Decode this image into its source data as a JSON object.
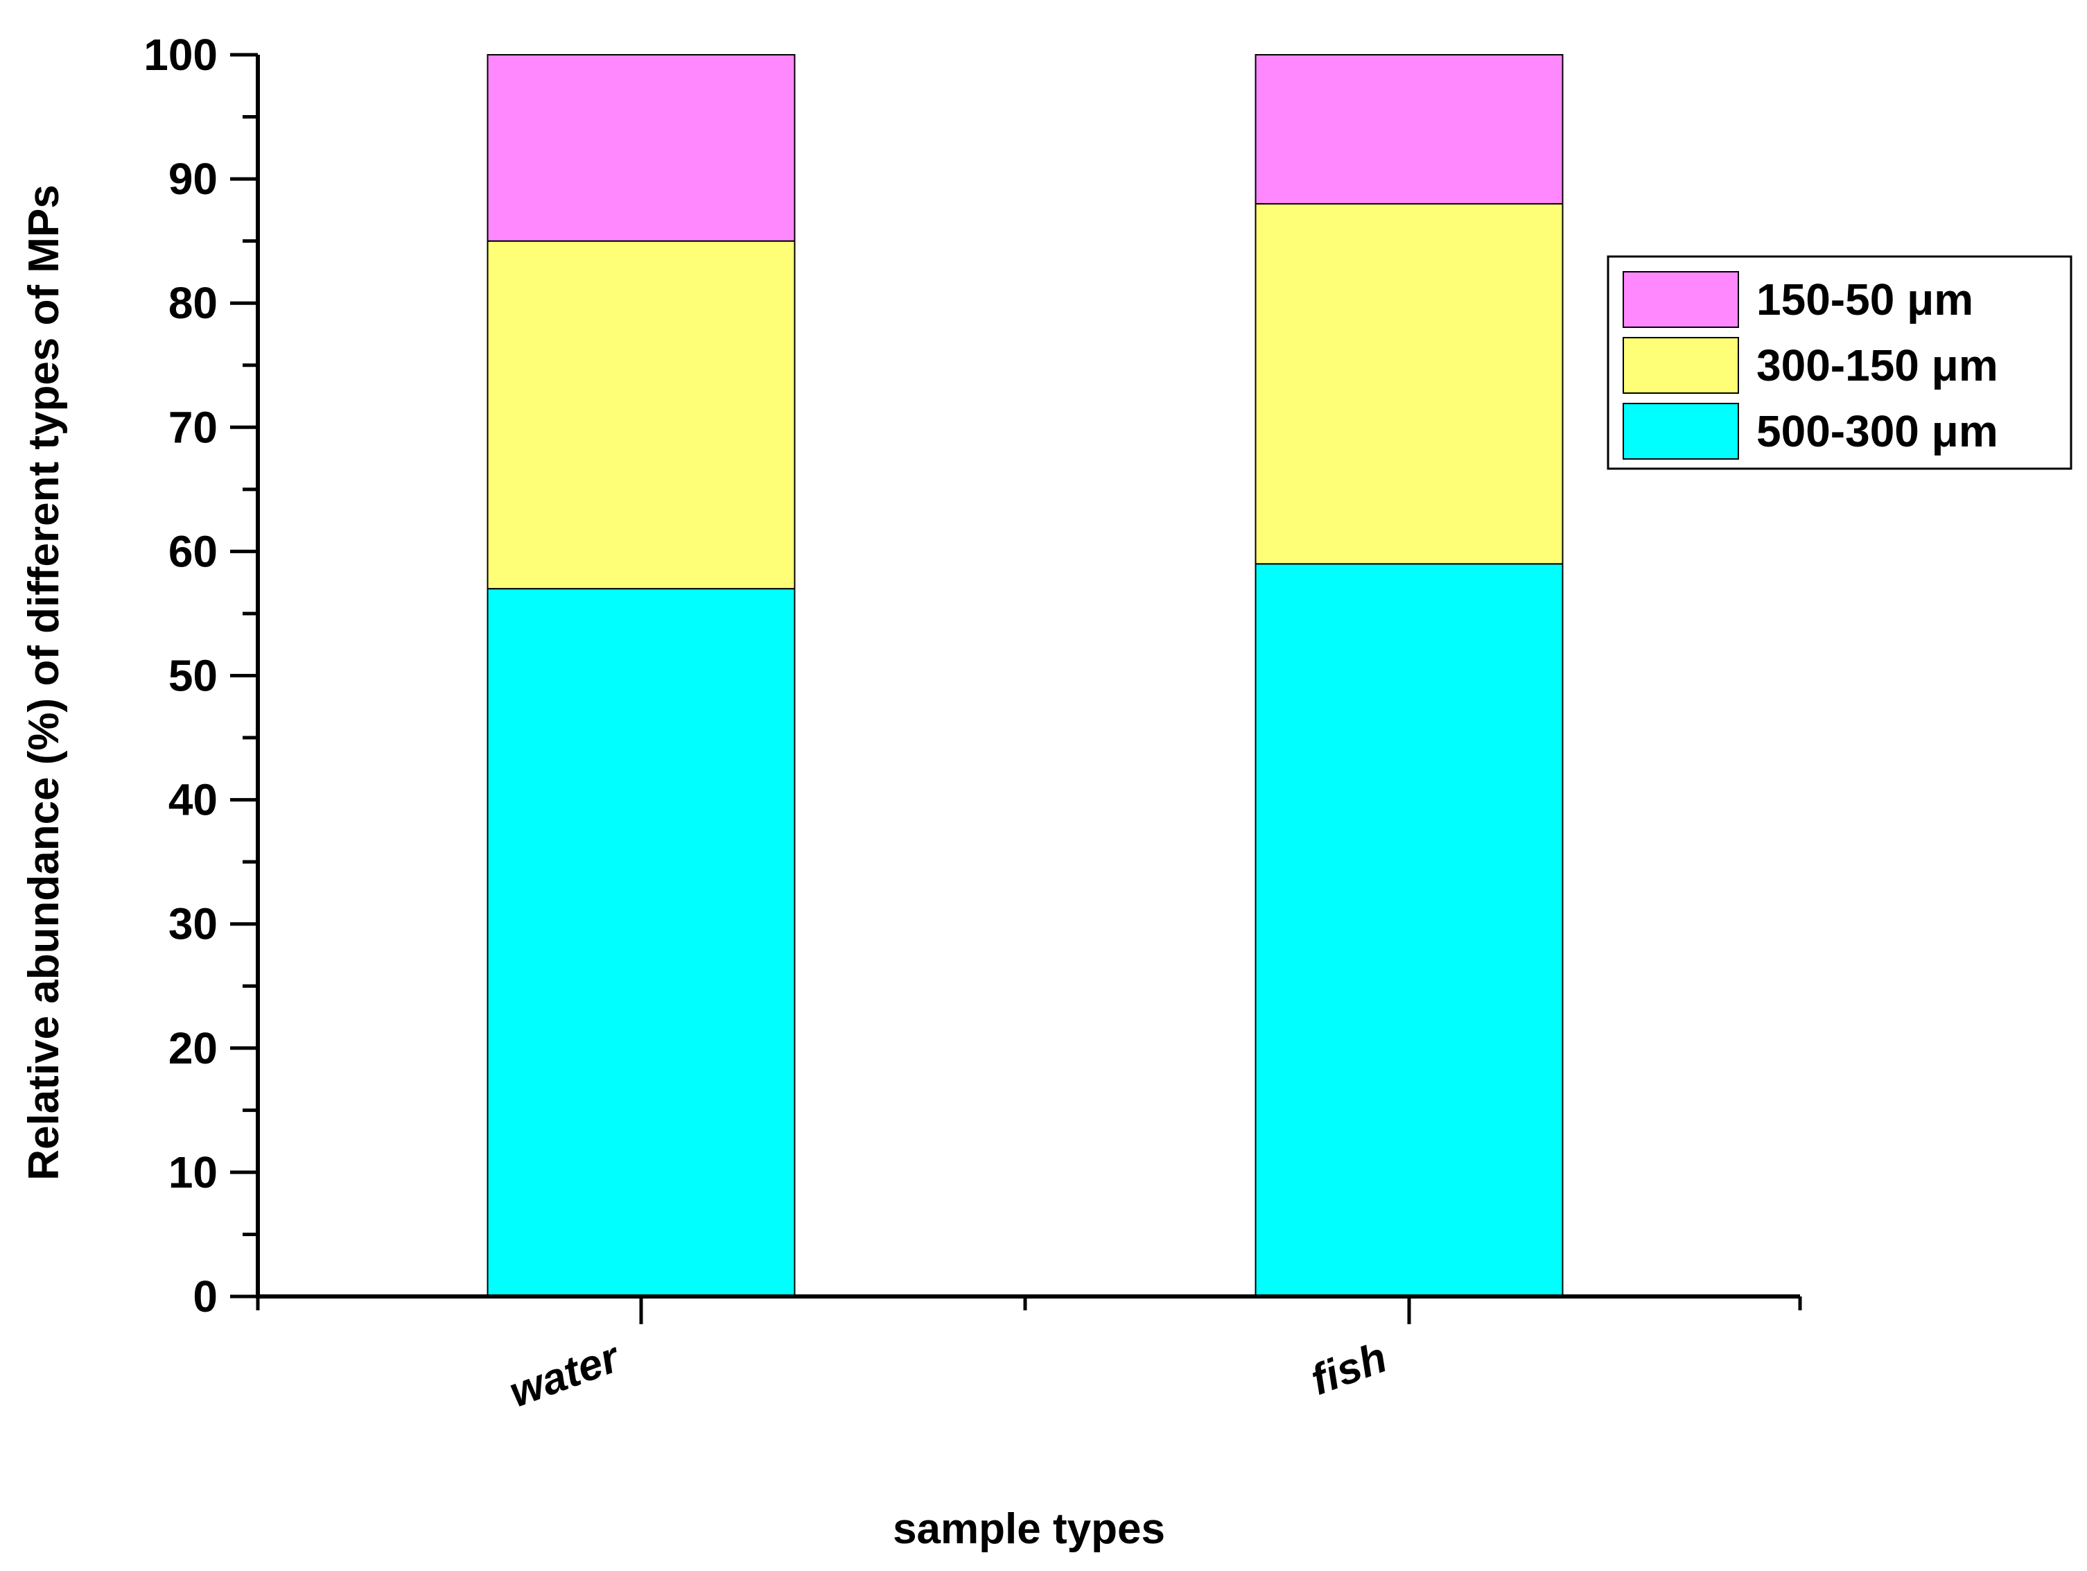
{
  "chart_data": {
    "type": "bar",
    "stacked": true,
    "categories": [
      "water",
      "fish"
    ],
    "series": [
      {
        "name": "500-300 μm",
        "values": [
          57,
          59
        ],
        "color": "#00ffff"
      },
      {
        "name": "300-150 μm",
        "values": [
          28,
          29
        ],
        "color": "#ffff77"
      },
      {
        "name": "150-50 μm",
        "values": [
          15,
          12
        ],
        "color": "#ff88ff"
      }
    ],
    "xlabel": "sample types",
    "ylabel": "Relative abundance (%) of different types of MPs",
    "ylim": [
      0,
      100
    ],
    "yticks": [
      0,
      10,
      20,
      30,
      40,
      50,
      60,
      70,
      80,
      90,
      100
    ],
    "ytick_labels": [
      "0",
      "10",
      "20",
      "30",
      "40",
      "50",
      "60",
      "70",
      "80",
      "90",
      "100"
    ],
    "grid": false,
    "legend": {
      "position": "right",
      "order": [
        "150-50 μm",
        "300-150 μm",
        "500-300 μm"
      ]
    }
  }
}
